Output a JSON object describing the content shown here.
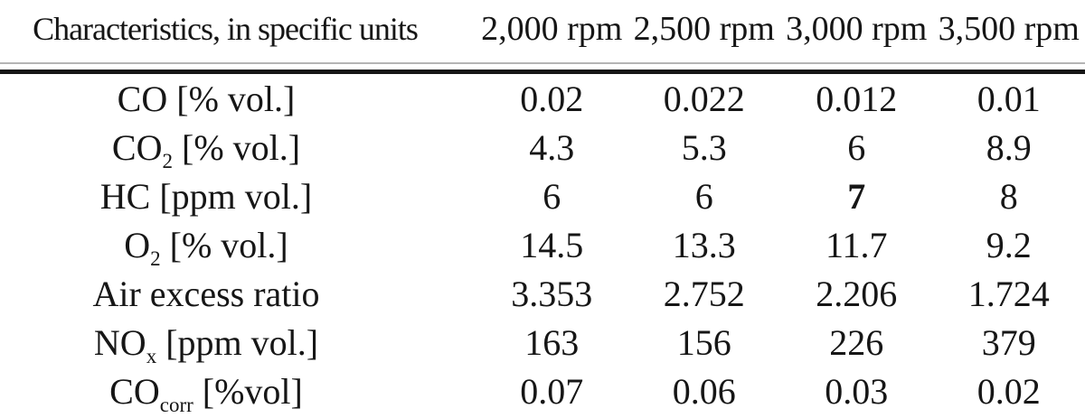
{
  "page": {
    "background": "#ffffff",
    "text_color": "#161616",
    "rule_thick_color": "#151515",
    "rule_thin_color": "#9b9b9b"
  },
  "table": {
    "header_label": "Characteristics, in specific units",
    "rpm_columns": [
      "2,000 rpm",
      "2,500 rpm",
      "3,000 rpm",
      "3,500 rpm"
    ],
    "rows": [
      {
        "pre": "CO",
        "sub": "",
        "post": " [% vol.]",
        "values": [
          "0.02",
          "0.022",
          "0.012",
          "0.01"
        ]
      },
      {
        "pre": "CO",
        "sub": "2",
        "post": " [% vol.]",
        "values": [
          "4.3",
          "5.3",
          "6",
          "8.9"
        ]
      },
      {
        "pre": "HC",
        "sub": "",
        "post": " [ppm vol.]",
        "values": [
          "6",
          "6",
          "7",
          "8"
        ],
        "bold": [
          2
        ]
      },
      {
        "pre": "O",
        "sub": "2",
        "post": " [% vol.]",
        "values": [
          "14.5",
          "13.3",
          "11.7",
          "9.2"
        ]
      },
      {
        "pre": "Air excess ratio",
        "sub": "",
        "post": "",
        "values": [
          "3.353",
          "2.752",
          "2.206",
          "1.724"
        ]
      },
      {
        "pre": "NO",
        "sub": "x",
        "post": " [ppm vol.]",
        "values": [
          "163",
          "156",
          "226",
          "379"
        ]
      },
      {
        "pre": "CO",
        "sub": "corr",
        "post": " [%vol]",
        "values": [
          "0.07",
          "0.06",
          "0.03",
          "0.02"
        ]
      }
    ]
  },
  "chart_data": {
    "type": "table",
    "title": "Characteristics, in specific units",
    "categories": [
      "2,000 rpm",
      "2,500 rpm",
      "3,000 rpm",
      "3,500 rpm"
    ],
    "series": [
      {
        "name": "CO [% vol.]",
        "values": [
          0.02,
          0.022,
          0.012,
          0.01
        ]
      },
      {
        "name": "CO2 [% vol.]",
        "values": [
          4.3,
          5.3,
          6,
          8.9
        ]
      },
      {
        "name": "HC [ppm vol.]",
        "values": [
          6,
          6,
          7,
          8
        ]
      },
      {
        "name": "O2 [% vol.]",
        "values": [
          14.5,
          13.3,
          11.7,
          9.2
        ]
      },
      {
        "name": "Air excess ratio",
        "values": [
          3.353,
          2.752,
          2.206,
          1.724
        ]
      },
      {
        "name": "NOx [ppm vol.]",
        "values": [
          163,
          156,
          226,
          379
        ]
      },
      {
        "name": "COcorr [%vol]",
        "values": [
          0.07,
          0.06,
          0.03,
          0.02
        ]
      }
    ]
  }
}
